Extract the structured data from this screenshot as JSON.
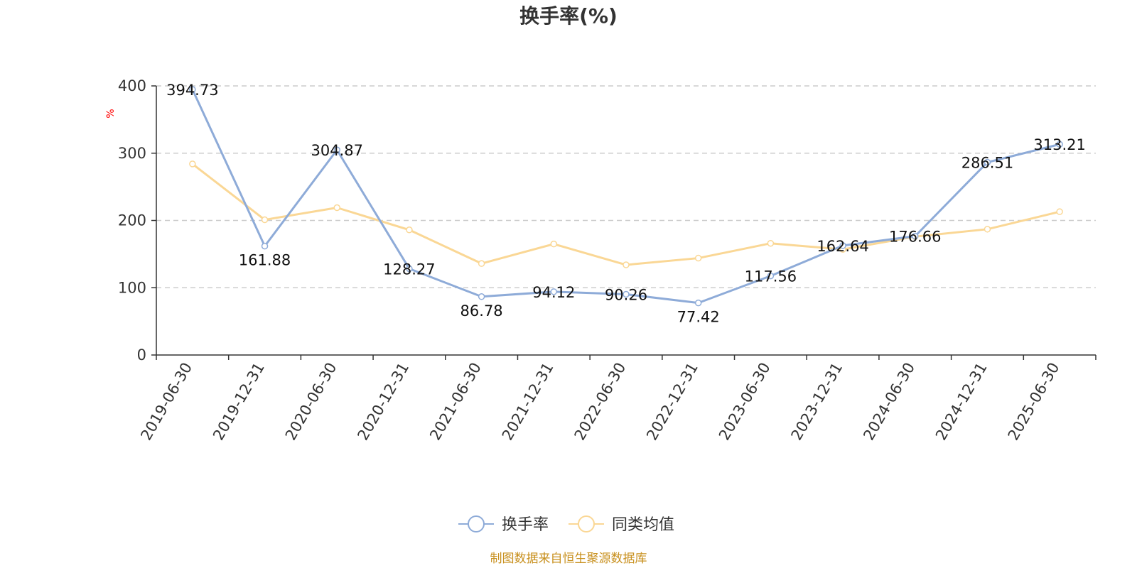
{
  "source": "制图数据来自恒生聚源数据库",
  "chart_data": {
    "type": "line",
    "title": "换手率(%)",
    "ylabel": "%",
    "xlabel": "",
    "ylim": [
      0,
      400
    ],
    "yticks": [
      0,
      100,
      200,
      300,
      400
    ],
    "grid": true,
    "legend_position": "bottom-center",
    "categories": [
      "2019-06-30",
      "2019-12-31",
      "2020-06-30",
      "2020-12-31",
      "2021-06-30",
      "2021-12-31",
      "2022-06-30",
      "2022-12-31",
      "2023-06-30",
      "2023-12-31",
      "2024-06-30",
      "2024-12-31",
      "2025-06-30"
    ],
    "series": [
      {
        "name": "换手率",
        "color": "#8eabd8",
        "labeled": true,
        "values": [
          394.73,
          161.88,
          304.87,
          128.27,
          86.78,
          94.12,
          90.26,
          77.42,
          117.56,
          162.64,
          176.66,
          286.51,
          313.21
        ]
      },
      {
        "name": "同类均值",
        "color": "#fad795",
        "labeled": false,
        "values": [
          284,
          201,
          219,
          186,
          136,
          165,
          134,
          144,
          166,
          157,
          176,
          187,
          213
        ]
      }
    ]
  }
}
